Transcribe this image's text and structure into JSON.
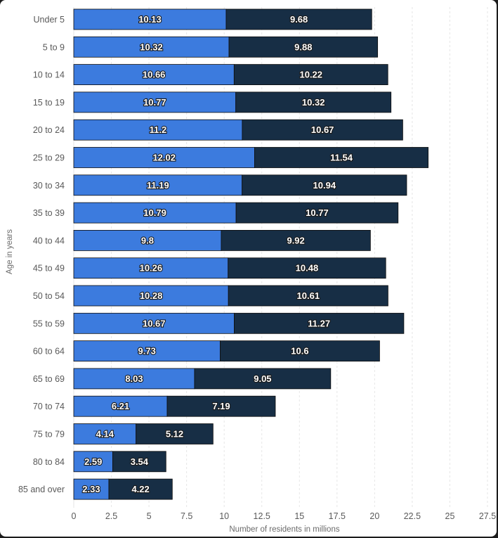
{
  "chart_data": {
    "type": "bar",
    "orientation": "horizontal",
    "stacked": true,
    "title": "",
    "xlabel": "Number of residents in millions",
    "ylabel": "Age in years",
    "xlim": [
      0,
      27.5
    ],
    "xticks": [
      "0",
      "2.5",
      "5",
      "7.5",
      "10",
      "12.5",
      "15",
      "17.5",
      "20",
      "22.5",
      "25",
      "27.5"
    ],
    "grid": true,
    "legend": "none",
    "categories": [
      "Under 5",
      "5 to 9",
      "10 to 14",
      "15 to 19",
      "20 to 24",
      "25 to 29",
      "30 to 34",
      "35 to 39",
      "40 to 44",
      "45 to 49",
      "50 to 54",
      "55 to 59",
      "60 to 64",
      "65 to 69",
      "70 to 74",
      "75 to 79",
      "80 to 84",
      "85 and over"
    ],
    "series": [
      {
        "color": "#3c7bde",
        "values": [
          10.13,
          10.32,
          10.66,
          10.77,
          11.2,
          12.02,
          11.19,
          10.79,
          9.8,
          10.26,
          10.28,
          10.67,
          9.73,
          8.03,
          6.21,
          4.14,
          2.59,
          2.33
        ],
        "labels": [
          "10.13",
          "10.32",
          "10.66",
          "10.77",
          "11.2",
          "12.02",
          "11.19",
          "10.79",
          "9.8",
          "10.26",
          "10.28",
          "10.67",
          "9.73",
          "8.03",
          "6.21",
          "4.14",
          "2.59",
          "2.33"
        ]
      },
      {
        "color": "#172e45",
        "values": [
          9.68,
          9.88,
          10.22,
          10.32,
          10.67,
          11.54,
          10.94,
          10.77,
          9.92,
          10.48,
          10.61,
          11.27,
          10.6,
          9.05,
          7.19,
          5.12,
          3.54,
          4.22
        ],
        "labels": [
          "9.68",
          "9.88",
          "10.22",
          "10.32",
          "10.67",
          "11.54",
          "10.94",
          "10.77",
          "9.92",
          "10.48",
          "10.61",
          "11.27",
          "10.6",
          "9.05",
          "7.19",
          "5.12",
          "3.54",
          "4.22"
        ]
      }
    ]
  },
  "colors": {
    "background": "#1c1c1c",
    "panel": "#ffffff",
    "gridline": "#e6e6e6",
    "text": "#595959"
  }
}
